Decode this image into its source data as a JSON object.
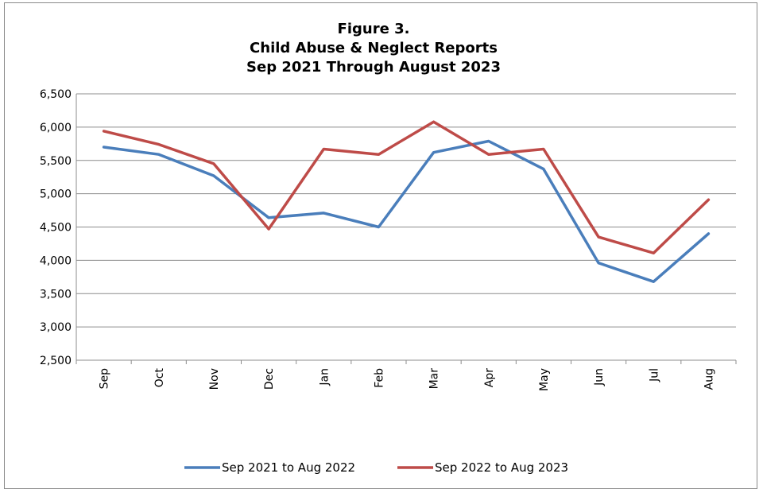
{
  "chart_data": {
    "type": "line",
    "title": [
      "Figure 3.",
      "Child Abuse & Neglect Reports",
      "Sep 2021 Through August 2023"
    ],
    "xlabel": "",
    "ylabel": "",
    "categories": [
      "Sep",
      "Oct",
      "Nov",
      "Dec",
      "Jan",
      "Feb",
      "Mar",
      "Apr",
      "May",
      "Jun",
      "Jul",
      "Aug"
    ],
    "yticks": [
      "2,500",
      "3,000",
      "3,500",
      "4,000",
      "4,500",
      "5,000",
      "5,500",
      "6,000",
      "6,500"
    ],
    "ylim": [
      2500,
      6500
    ],
    "grid": true,
    "legend_position": "bottom",
    "series": [
      {
        "name": "Sep 2021 to Aug 2022",
        "color": "#4a7ebb",
        "values": [
          5700,
          5590,
          5270,
          4640,
          4710,
          4500,
          5620,
          5790,
          5370,
          3960,
          3680,
          4400
        ]
      },
      {
        "name": "Sep 2022 to Aug 2023",
        "color": "#be4b48",
        "values": [
          5940,
          5740,
          5450,
          4470,
          5670,
          5590,
          6080,
          5590,
          5670,
          4350,
          4110,
          4910
        ]
      }
    ]
  }
}
